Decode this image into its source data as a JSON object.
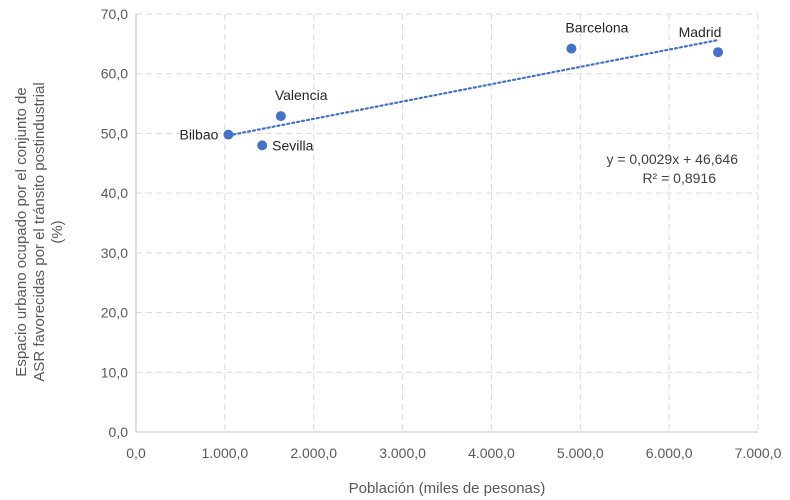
{
  "chart_data": {
    "type": "scatter",
    "xlabel": "Población (miles de pesonas)",
    "ylabel_lines": [
      "Espacio urbano ocupado por el conjunto de",
      "ASR favorecidas por el tránsito postindustrial",
      "(%)"
    ],
    "xlim": [
      0,
      7000
    ],
    "ylim": [
      0,
      70
    ],
    "x_ticks": [
      0,
      1000,
      2000,
      3000,
      4000,
      5000,
      6000,
      7000
    ],
    "x_tick_labels": [
      "0,0",
      "1.000,0",
      "2.000,0",
      "3.000,0",
      "4.000,0",
      "5.000,0",
      "6.000,0",
      "7.000,0"
    ],
    "y_ticks": [
      0,
      10,
      20,
      30,
      40,
      50,
      60,
      70
    ],
    "y_tick_labels": [
      "0,0",
      "10,0",
      "20,0",
      "30,0",
      "40,0",
      "50,0",
      "60,0",
      "70,0"
    ],
    "grid": true,
    "points": [
      {
        "label": "Bilbao",
        "x": 1040,
        "y": 49.8,
        "label_pos": "left"
      },
      {
        "label": "Sevilla",
        "x": 1420,
        "y": 48.0,
        "label_pos": "right"
      },
      {
        "label": "Valencia",
        "x": 1630,
        "y": 52.9,
        "label_pos": "above-right"
      },
      {
        "label": "Barcelona",
        "x": 4900,
        "y": 64.2,
        "label_pos": "above-right"
      },
      {
        "label": "Madrid",
        "x": 6550,
        "y": 63.6,
        "label_pos": "above"
      }
    ],
    "trendline": {
      "slope": 0.0029,
      "intercept": 46.646,
      "x_range": [
        1040,
        6550
      ],
      "style": "dotted"
    },
    "equation_text": "y = 0,0029x + 46,646",
    "r2_text": "R² = 0,8916",
    "colors": {
      "points": "#4472C4",
      "trendline": "#4472C4",
      "grid": "#D9D9D9",
      "axis": "#BFBFBF"
    }
  }
}
